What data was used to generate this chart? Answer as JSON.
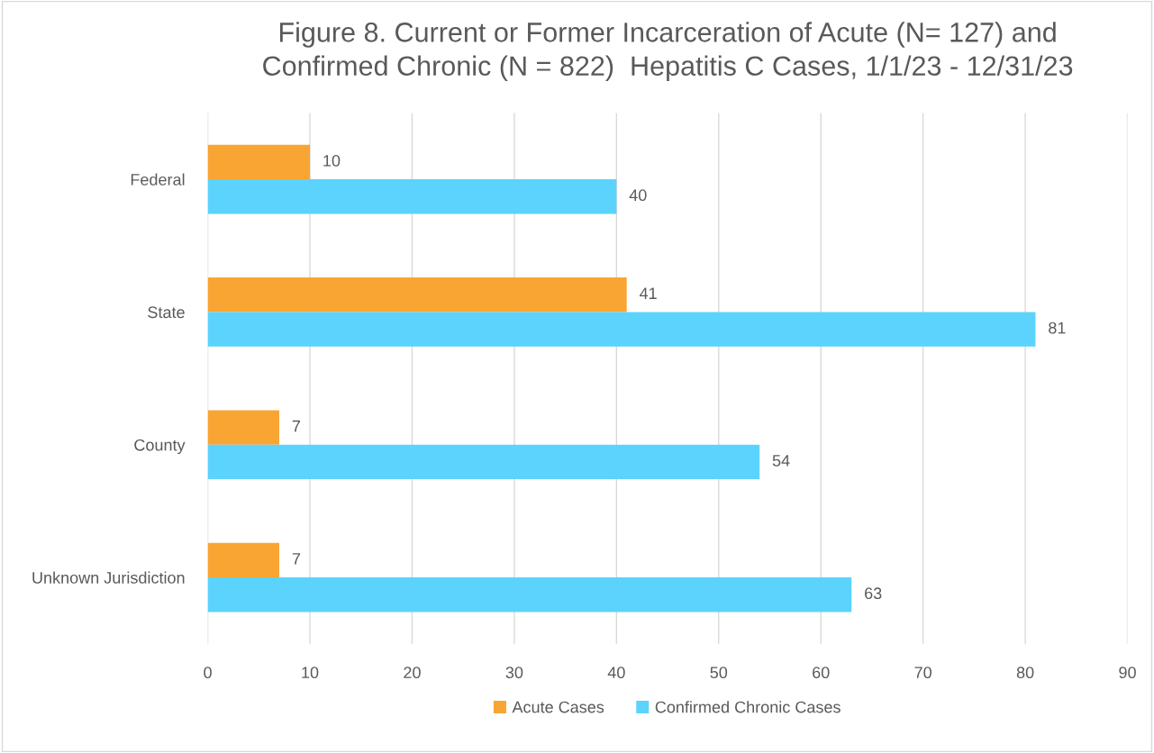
{
  "chart_data": {
    "type": "bar",
    "orientation": "horizontal",
    "title": "Figure 8. Current or Former Incarceration of Acute (N= 127) and\nConfirmed Chronic (N = 822)  Hepatitis C Cases, 1/1/23 - 12/31/23",
    "categories": [
      "Federal",
      "State",
      "County",
      "Unknown Jurisdiction"
    ],
    "series": [
      {
        "name": "Acute Cases",
        "color": "#f9a533",
        "values": [
          10,
          41,
          7,
          7
        ]
      },
      {
        "name": "Confirmed Chronic Cases",
        "color": "#5bd3fd",
        "values": [
          40,
          81,
          54,
          63
        ]
      }
    ],
    "xlim": [
      0,
      90
    ],
    "xticks": [
      0,
      10,
      20,
      30,
      40,
      50,
      60,
      70,
      80,
      90
    ],
    "grid": "x",
    "legend": "bottom",
    "data_labels": true
  }
}
